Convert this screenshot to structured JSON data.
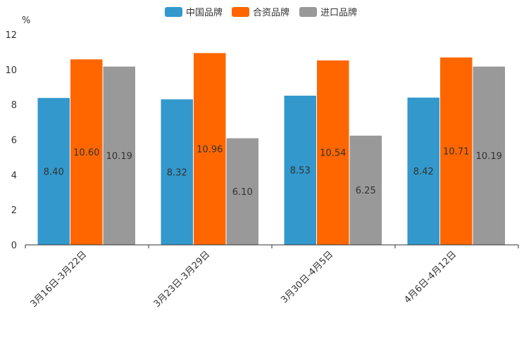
{
  "chart_data": {
    "type": "bar",
    "unit_label": "%",
    "categories": [
      "3月16日-3月22日",
      "3月23日-3月29日",
      "3月30日-4月5日",
      "4月6日-4月12日"
    ],
    "series": [
      {
        "name": "中国品牌",
        "color": "#3398cc",
        "values": [
          8.4,
          8.32,
          8.53,
          8.42
        ],
        "labels": [
          "8.40",
          "8.32",
          "8.53",
          "8.42"
        ]
      },
      {
        "name": "合资品牌",
        "color": "#ff6600",
        "values": [
          10.6,
          10.96,
          10.54,
          10.71
        ],
        "labels": [
          "10.60",
          "10.96",
          "10.54",
          "10.71"
        ]
      },
      {
        "name": "进口品牌",
        "color": "#999999",
        "values": [
          10.19,
          6.1,
          6.25,
          10.19
        ],
        "labels": [
          "10.19",
          "6.10",
          "6.25",
          "10.19"
        ]
      }
    ],
    "ylim": [
      0,
      12
    ],
    "yticks": [
      "0",
      "2",
      "4",
      "6",
      "8",
      "10",
      "12"
    ],
    "legend_position": "top-center",
    "grid": false
  }
}
